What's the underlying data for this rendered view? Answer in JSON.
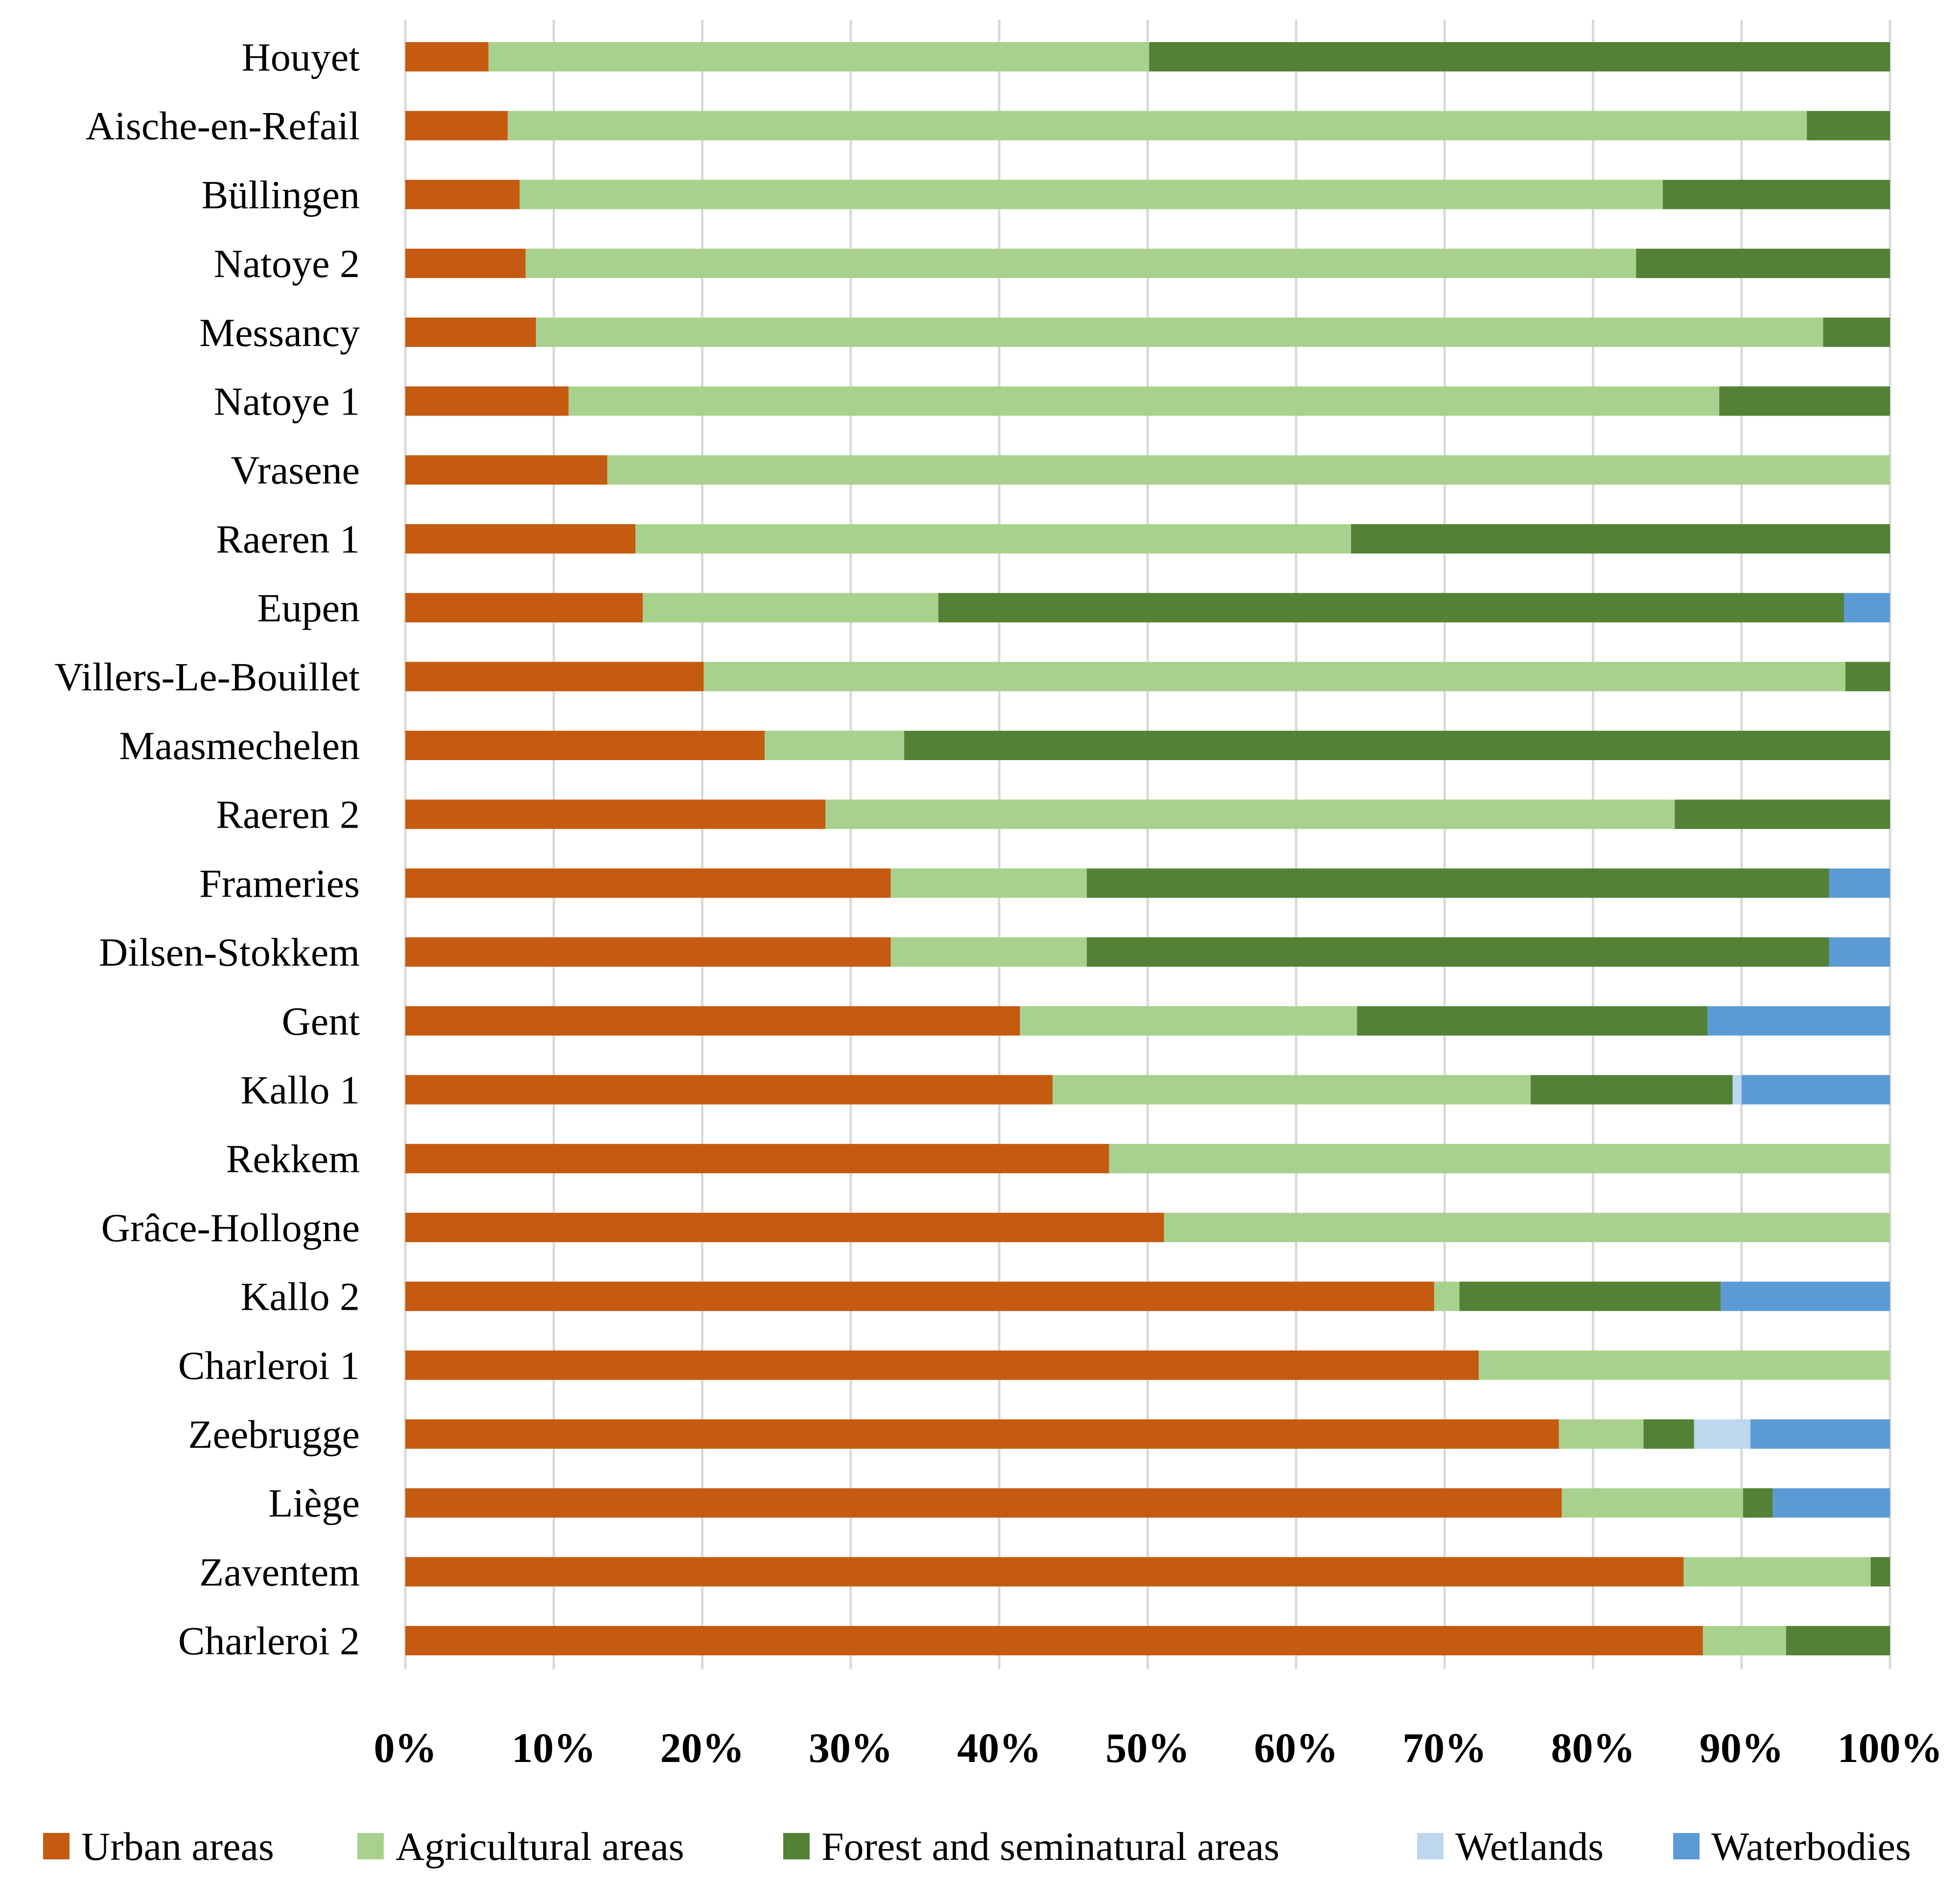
{
  "chart_data": {
    "type": "bar",
    "orientation": "horizontal",
    "stacked": "percent",
    "title": "",
    "xlabel": "",
    "ylabel": "",
    "xlim": [
      0,
      100
    ],
    "x_ticks": [
      "0%",
      "10%",
      "20%",
      "30%",
      "40%",
      "50%",
      "60%",
      "70%",
      "80%",
      "90%",
      "100%"
    ],
    "grid": true,
    "legend_position": "bottom",
    "categories": [
      "Houyet",
      "Aische-en-Refail",
      "Büllingen",
      "Natoye 2",
      "Messancy",
      "Natoye 1",
      "Vrasene",
      "Raeren 1",
      "Eupen",
      "Villers-Le-Bouillet",
      "Maasmechelen",
      "Raeren 2",
      "Frameries",
      "Dilsen-Stokkem",
      "Gent",
      "Kallo 1",
      "Rekkem",
      "Grâce-Hollogne",
      "Kallo 2",
      "Charleroi 1",
      "Zeebrugge",
      "Liège",
      "Zaventem",
      "Charleroi 2"
    ],
    "series": [
      {
        "name": "Urban areas",
        "color": "#c55a11",
        "values": [
          5.6,
          6.9,
          7.7,
          8.1,
          8.8,
          11.0,
          13.6,
          15.5,
          16.0,
          20.1,
          24.2,
          28.3,
          32.7,
          32.7,
          41.4,
          43.6,
          47.4,
          51.1,
          69.3,
          72.3,
          77.7,
          77.9,
          86.1,
          87.4
        ]
      },
      {
        "name": "Agricultural areas",
        "color": "#a9d18e",
        "values": [
          44.5,
          87.5,
          77.0,
          74.8,
          86.7,
          77.5,
          86.4,
          48.2,
          19.9,
          76.9,
          9.4,
          57.2,
          13.2,
          13.2,
          22.7,
          32.2,
          52.6,
          48.9,
          1.7,
          27.7,
          5.7,
          12.2,
          12.6,
          5.6
        ]
      },
      {
        "name": "Forest and seminatural areas",
        "color": "#538135",
        "values": [
          49.9,
          5.6,
          15.3,
          17.1,
          4.5,
          11.5,
          0,
          36.3,
          61.0,
          3.0,
          66.4,
          14.5,
          50.0,
          50.0,
          23.6,
          13.6,
          0,
          0,
          17.6,
          0,
          3.4,
          2.0,
          1.3,
          7.0
        ]
      },
      {
        "name": "Wetlands",
        "color": "#bdd7ee",
        "values": [
          0,
          0,
          0,
          0,
          0,
          0,
          0,
          0,
          0,
          0,
          0,
          0,
          0,
          0,
          0,
          0.6,
          0,
          0,
          0,
          0,
          3.8,
          0,
          0,
          0
        ]
      },
      {
        "name": "Waterbodies",
        "color": "#5b9bd5",
        "values": [
          0,
          0,
          0,
          0,
          0,
          0,
          0,
          0,
          3.1,
          0,
          0,
          0,
          4.1,
          4.1,
          12.3,
          10.0,
          0,
          0,
          11.4,
          0,
          9.4,
          7.9,
          0,
          0
        ]
      }
    ]
  }
}
